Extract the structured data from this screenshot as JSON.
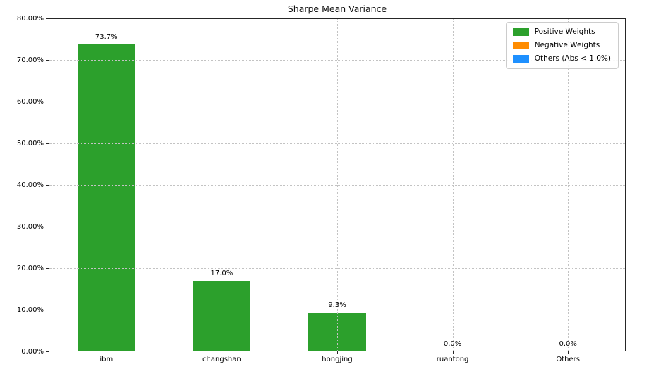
{
  "title": "Sharpe Mean Variance",
  "chart_data": {
    "type": "bar",
    "title": "Sharpe Mean Variance",
    "categories": [
      "ibm",
      "changshan",
      "hongjing",
      "ruantong",
      "Others"
    ],
    "values": [
      73.7,
      17.0,
      9.3,
      0.0,
      0.0
    ],
    "bar_labels": [
      "73.7%",
      "17.0%",
      "9.3%",
      "0.0%",
      "0.0%"
    ],
    "xlabel": "",
    "ylabel": "",
    "ylim": [
      0,
      80
    ],
    "ytick_step": 10,
    "ytick_labels": [
      "0.00%",
      "10.00%",
      "20.00%",
      "30.00%",
      "40.00%",
      "50.00%",
      "60.00%",
      "70.00%",
      "80.00%"
    ],
    "grid": true,
    "grid_style": "dotted",
    "bar_color": "#2ca02c",
    "legend": {
      "position": "upper right",
      "items": [
        {
          "label": "Positive Weights",
          "color": "#2ca02c"
        },
        {
          "label": "Negative Weights",
          "color": "#ff8c00"
        },
        {
          "label": "Others (Abs < 1.0%)",
          "color": "#1e90ff"
        }
      ]
    }
  }
}
